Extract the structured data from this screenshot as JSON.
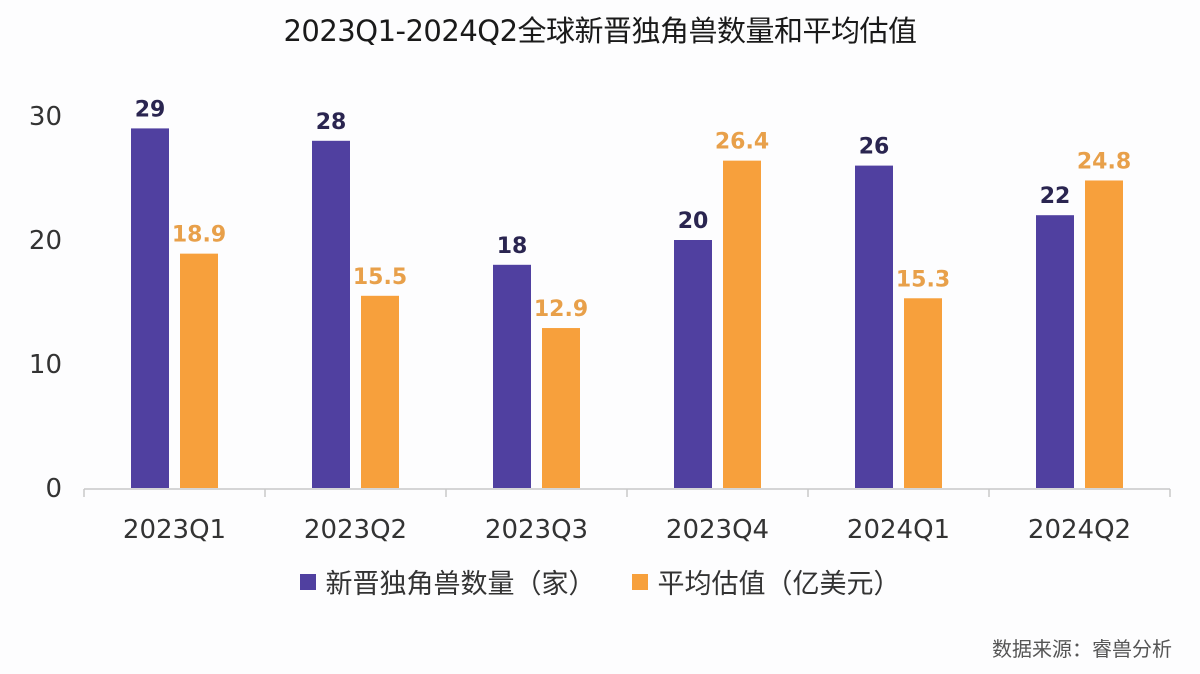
{
  "chart_data": {
    "type": "bar",
    "title": "2023Q1-2024Q2全球新晋独角兽数量和平均估值",
    "xlabel": "",
    "ylabel": "",
    "categories": [
      "2023Q1",
      "2023Q2",
      "2023Q3",
      "2023Q4",
      "2024Q1",
      "2024Q2"
    ],
    "series": [
      {
        "name": "新晋独角兽数量（家）",
        "color": "#5040a0",
        "label_color": "#2a2550",
        "values": [
          29,
          28,
          18,
          20,
          26,
          22
        ],
        "labels": [
          "29",
          "28",
          "18",
          "20",
          "26",
          "22"
        ]
      },
      {
        "name": "平均估值（亿美元）",
        "color": "#f7a03c",
        "label_color": "#e8a04a",
        "values": [
          18.9,
          15.5,
          12.9,
          26.4,
          15.3,
          24.8
        ],
        "labels": [
          "18.9",
          "15.5",
          "12.9",
          "26.4",
          "15.3",
          "24.8"
        ]
      }
    ],
    "ylim": [
      0,
      30
    ],
    "yticks": [
      "0",
      "10",
      "20",
      "30"
    ],
    "ytick_values": [
      0,
      10,
      20,
      30
    ],
    "grid": false,
    "legend_position": "bottom"
  },
  "source": "数据来源：睿兽分析"
}
